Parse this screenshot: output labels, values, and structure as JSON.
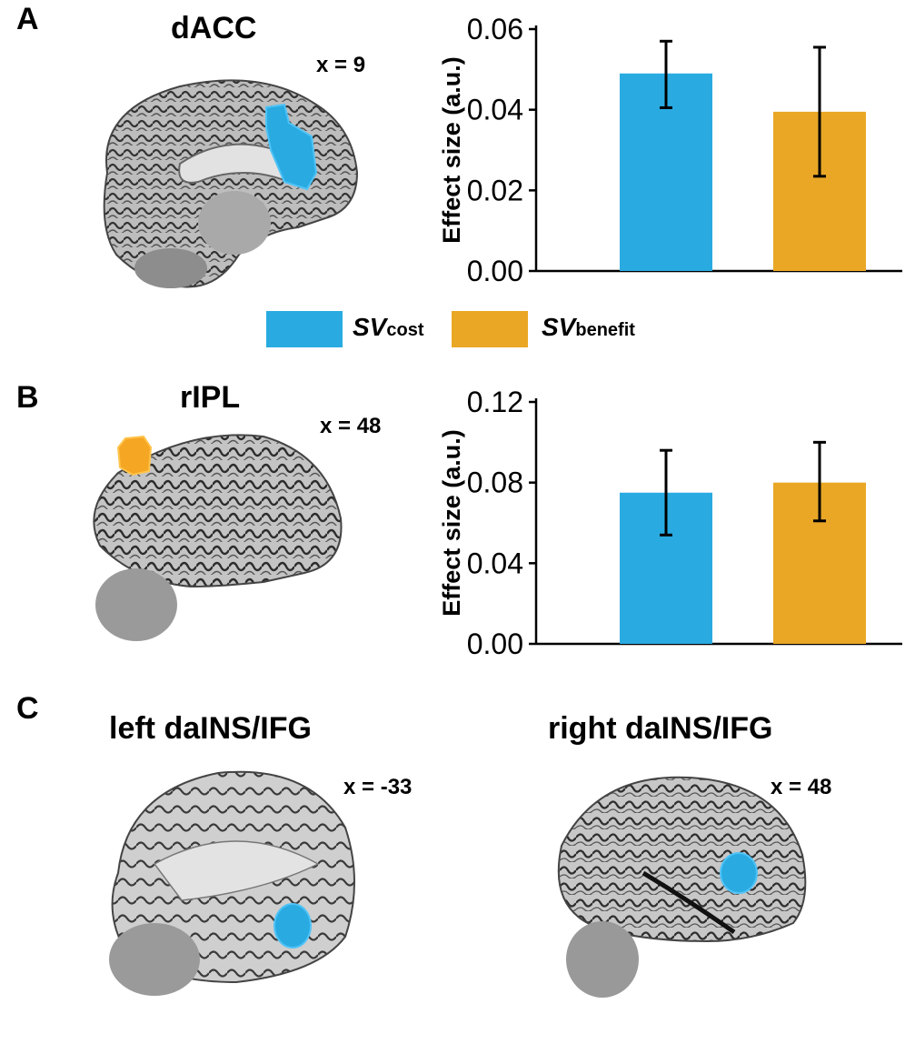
{
  "panels": {
    "A": {
      "letter": "A",
      "region": "dACC",
      "coord": "x = 9",
      "blob_color": "#29abe2"
    },
    "B": {
      "letter": "B",
      "region": "rIPL",
      "coord": "x = 48",
      "blob_color": "#f5a623"
    },
    "C": {
      "letter": "C",
      "left_region": "left daINS/IFG",
      "left_coord": "x = -33",
      "right_region": "right daINS/IFG",
      "right_coord": "x = 48",
      "blob_color": "#29abe2"
    }
  },
  "legend": {
    "items": [
      {
        "main": "SV",
        "sub": "cost",
        "color": "#29abe2"
      },
      {
        "main": "SV",
        "sub": "benefit",
        "color": "#e9a725"
      }
    ]
  },
  "colors": {
    "cost": "#29abe2",
    "benefit": "#e9a725",
    "error_bar": "#000000",
    "brain_gray": "#c8c8c8"
  },
  "chart_data": [
    {
      "type": "bar",
      "panel": "A",
      "categories": [
        "SVcost",
        "SVbenefit"
      ],
      "values": [
        0.049,
        0.0395
      ],
      "errors": [
        [
          0.0405,
          0.057
        ],
        [
          0.0235,
          0.0555
        ]
      ],
      "ylabel": "Effect size (a.u.)",
      "ylim": [
        0,
        0.06
      ],
      "yticks": [
        "0.00",
        "0.02",
        "0.04",
        "0.06"
      ],
      "colors": [
        "#29abe2",
        "#e9a725"
      ]
    },
    {
      "type": "bar",
      "panel": "B",
      "categories": [
        "SVcost",
        "SVbenefit"
      ],
      "values": [
        0.075,
        0.08
      ],
      "errors": [
        [
          0.054,
          0.096
        ],
        [
          0.061,
          0.1
        ]
      ],
      "ylabel": "Effect size (a.u.)",
      "ylim": [
        0,
        0.12
      ],
      "yticks": [
        "0.00",
        "0.04",
        "0.08",
        "0.12"
      ],
      "colors": [
        "#29abe2",
        "#e9a725"
      ]
    }
  ]
}
